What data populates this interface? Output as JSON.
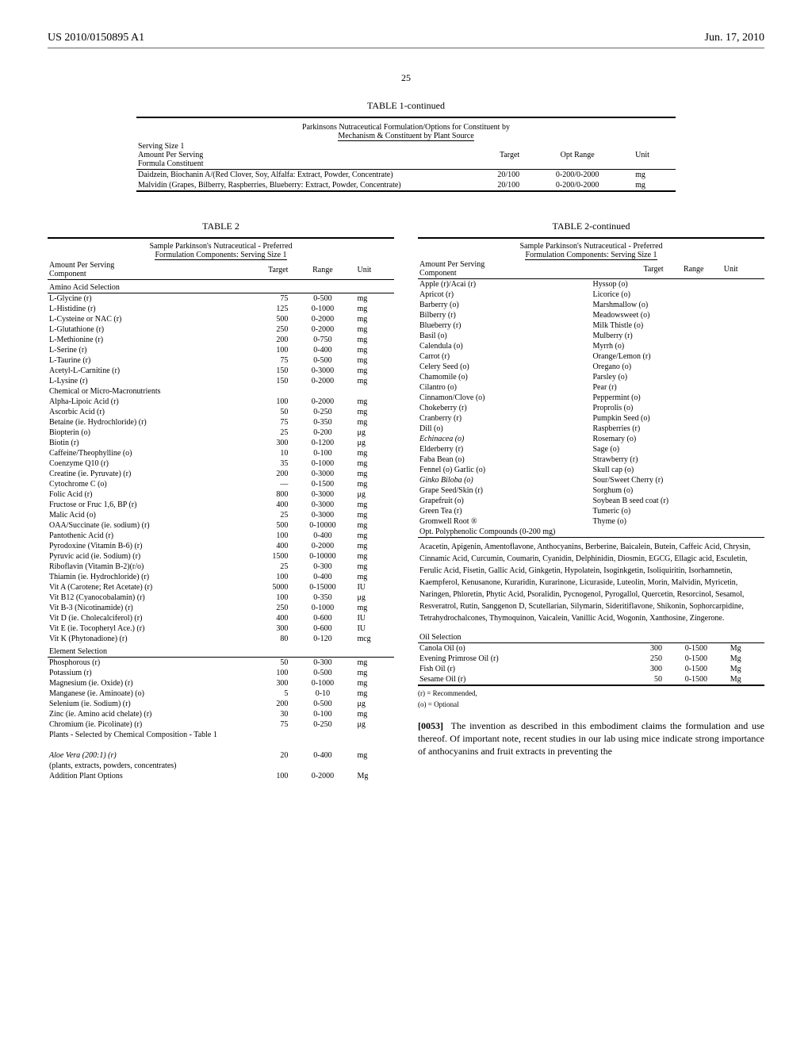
{
  "header": {
    "left": "US 2010/0150895 A1",
    "right": "Jun. 17, 2010"
  },
  "page_number": "25",
  "table1": {
    "title": "TABLE 1-continued",
    "subtitle1": "Parkinsons Nutraceutical Formulation/Options for Constituent by",
    "subtitle2": "Mechanism & Constituent by Plant Source",
    "h_serving": "Serving Size 1",
    "h_amount": "Amount Per Serving",
    "h_formula": "Formula Constituent",
    "h_target": "Target",
    "h_range": "Opt Range",
    "h_unit": "Unit",
    "r1_name": "Daidzein, Biochanin A/(Red Clover, Soy, Alfalfa: Extract, Powder, Concentrate)",
    "r1_target": "20/100",
    "r1_range": "0-200/0-2000",
    "r1_unit": "mg",
    "r2_name": "Malvidin (Grapes, Bilberry, Raspberries, Blueberry: Extract, Powder, Concentrate)",
    "r2_target": "20/100",
    "r2_range": "0-200/0-2000",
    "r2_unit": "mg"
  },
  "table2": {
    "title": "TABLE 2",
    "title_cont": "TABLE 2-continued",
    "subtitle1": "Sample Parkinson's Nutraceutical - Preferred",
    "subtitle2": "Formulation Components: Serving Size 1",
    "h_amount": "Amount Per Serving",
    "h_component": "Component",
    "h_target": "Target",
    "h_range": "Range",
    "h_unit": "Unit",
    "sec_amino": "Amino Acid Selection",
    "sec_chem": "Chemical or Micro-Macronutrients",
    "sec_elem": "Element Selection",
    "sec_plants": "Plants - Selected by Chemical Composition - Table 1",
    "sec_addplant": "Addition Plant Options",
    "sec_poly": "Opt. Polyphenolic Compounds (0-200 mg)",
    "sec_oil": "Oil Selection",
    "foot_r": "(r) = Recommended,",
    "foot_o": "(o) = Optional"
  },
  "amino": {
    "0": {
      "n": "L-Glycine (r)",
      "t": "75",
      "r": "0-500",
      "u": "mg"
    },
    "1": {
      "n": "L-Histidine (r)",
      "t": "125",
      "r": "0-1000",
      "u": "mg"
    },
    "2": {
      "n": "L-Cysteine or NAC (r)",
      "t": "500",
      "r": "0-2000",
      "u": "mg"
    },
    "3": {
      "n": "L-Glutathione (r)",
      "t": "250",
      "r": "0-2000",
      "u": "mg"
    },
    "4": {
      "n": "L-Methionine (r)",
      "t": "200",
      "r": "0-750",
      "u": "mg"
    },
    "5": {
      "n": "L-Serine (r)",
      "t": "100",
      "r": "0-400",
      "u": "mg"
    },
    "6": {
      "n": "L-Taurine (r)",
      "t": "75",
      "r": "0-500",
      "u": "mg"
    },
    "7": {
      "n": "Acetyl-L-Carnitine (r)",
      "t": "150",
      "r": "0-3000",
      "u": "mg"
    },
    "8": {
      "n": "L-Lysine (r)",
      "t": "150",
      "r": "0-2000",
      "u": "mg"
    }
  },
  "chem": {
    "0": {
      "n": "Alpha-Lipoic Acid (r)",
      "t": "100",
      "r": "0-2000",
      "u": "mg"
    },
    "1": {
      "n": "Ascorbic Acid (r)",
      "t": "50",
      "r": "0-250",
      "u": "mg"
    },
    "2": {
      "n": "Betaine (ie. Hydrochloride) (r)",
      "t": "75",
      "r": "0-350",
      "u": "mg"
    },
    "3": {
      "n": "Biopterin (o)",
      "t": "25",
      "r": "0-200",
      "u": "μg"
    },
    "4": {
      "n": "Biotin (r)",
      "t": "300",
      "r": "0-1200",
      "u": "μg"
    },
    "5": {
      "n": "Caffeine/Theophylline (o)",
      "t": "10",
      "r": "0-100",
      "u": "mg"
    },
    "6": {
      "n": "Coenzyme Q10 (r)",
      "t": "35",
      "r": "0-1000",
      "u": "mg"
    },
    "7": {
      "n": "Creatine (ie. Pyruvate) (r)",
      "t": "200",
      "r": "0-3000",
      "u": "mg"
    },
    "8": {
      "n": "Cytochrome C (o)",
      "t": "—",
      "r": "0-1500",
      "u": "mg"
    },
    "9": {
      "n": "Folic Acid (r)",
      "t": "800",
      "r": "0-3000",
      "u": "μg"
    },
    "10": {
      "n": "Fructose or Fruc 1,6, BP (r)",
      "t": "400",
      "r": "0-3000",
      "u": "mg"
    },
    "11": {
      "n": "Malic Acid (o)",
      "t": "25",
      "r": "0-3000",
      "u": "mg"
    },
    "12": {
      "n": "OAA/Succinate (ie. sodium) (r)",
      "t": "500",
      "r": "0-10000",
      "u": "mg"
    },
    "13": {
      "n": "Pantothenic Acid (r)",
      "t": "100",
      "r": "0-400",
      "u": "mg"
    },
    "14": {
      "n": "Pyrodoxine (Vitamin B-6) (r)",
      "t": "400",
      "r": "0-2000",
      "u": "mg"
    },
    "15": {
      "n": "Pyruvic acid (ie. Sodium) (r)",
      "t": "1500",
      "r": "0-10000",
      "u": "mg"
    },
    "16": {
      "n": "Riboflavin (Vitamin B-2)(r/o)",
      "t": "25",
      "r": "0-300",
      "u": "mg"
    },
    "17": {
      "n": "Thiamin (ie. Hydrochloride) (r)",
      "t": "100",
      "r": "0-400",
      "u": "mg"
    },
    "18": {
      "n": "Vit A (Carotene; Ret Acetate) (r)",
      "t": "5000",
      "r": "0-15000",
      "u": "IU"
    },
    "19": {
      "n": "Vit B12 (Cyanocobalamin) (r)",
      "t": "100",
      "r": "0-350",
      "u": "μg"
    },
    "20": {
      "n": "Vit B-3 (Nicotinamide) (r)",
      "t": "250",
      "r": "0-1000",
      "u": "mg"
    },
    "21": {
      "n": "Vit D (ie. Cholecalciferol) (r)",
      "t": "400",
      "r": "0-600",
      "u": "IU"
    },
    "22": {
      "n": "Vit E (ie. Tocopheryl Ace.) (r)",
      "t": "300",
      "r": "0-600",
      "u": "IU"
    },
    "23": {
      "n": "Vit K (Phytonadione) (r)",
      "t": "80",
      "r": "0-120",
      "u": "mcg"
    }
  },
  "elem": {
    "0": {
      "n": "Phosphorous (r)",
      "t": "50",
      "r": "0-300",
      "u": "mg"
    },
    "1": {
      "n": "Potassium (r)",
      "t": "100",
      "r": "0-500",
      "u": "mg"
    },
    "2": {
      "n": "Magnesium (ie. Oxide) (r)",
      "t": "300",
      "r": "0-1000",
      "u": "mg"
    },
    "3": {
      "n": "Manganese (ie. Aminoate) (o)",
      "t": "5",
      "r": "0-10",
      "u": "mg"
    },
    "4": {
      "n": "Selenium (ie. Sodium) (r)",
      "t": "200",
      "r": "0-500",
      "u": "μg"
    },
    "5": {
      "n": "Zinc (ie. Amino acid chelate) (r)",
      "t": "30",
      "r": "0-100",
      "u": "mg"
    },
    "6": {
      "n": "Chromium (ie. Picolinate) (r)",
      "t": "75",
      "r": "0-250",
      "u": "μg"
    }
  },
  "pl": {
    "aloe_n": "Aloe Vera (200:1) (r)",
    "aloe_t": "20",
    "aloe_r": "0-400",
    "aloe_u": "mg",
    "aloe_note": "(plants, extracts, powders, concentrates)",
    "add_t": "100",
    "add_r": "0-2000",
    "add_u": "Mg"
  },
  "pp": {
    "0": {
      "l": "Apple (r)/Acai (r)",
      "r": "Hyssop (o)"
    },
    "1": {
      "l": "Apricot (r)",
      "r": "Licorice (o)"
    },
    "2": {
      "l": "Barberry (o)",
      "r": "Marshmallow (o)"
    },
    "3": {
      "l": "Bilberry (r)",
      "r": "Meadowsweet (o)"
    },
    "4": {
      "l": "Blueberry (r)",
      "r": "Milk Thistle (o)"
    },
    "5": {
      "l": "Basil (o)",
      "r": "Mulberry (r)"
    },
    "6": {
      "l": "Calendula (o)",
      "r": "Myrrh (o)"
    },
    "7": {
      "l": "Carrot (r)",
      "r": "Orange/Lemon (r)"
    },
    "8": {
      "l": "Celery Seed (o)",
      "r": "Oregano (o)"
    },
    "9": {
      "l": "Chamomile (o)",
      "r": "Parsley (o)"
    },
    "10": {
      "l": "Cilantro (o)",
      "r": "Pear (r)"
    },
    "11": {
      "l": "Cinnamon/Clove (o)",
      "r": "Peppermint (o)"
    },
    "12": {
      "l": "Chokeberry (r)",
      "r": "Proprolis (o)"
    },
    "13": {
      "l": "Cranberry (r)",
      "r": "Pumpkin Seed (o)"
    },
    "14": {
      "l": "Dill (o)",
      "r": "Raspberries (r)"
    },
    "15": {
      "l": "Echinacea (o)",
      "r": "Rosemary (o)"
    },
    "16": {
      "l": "Elderberry (r)",
      "r": "Sage (o)"
    },
    "17": {
      "l": "Faba Bean (o)",
      "r": "Strawberry (r)"
    },
    "18": {
      "l": "Fennel (o) Garlic (o)",
      "r": "Skull cap (o)"
    },
    "19": {
      "l": "Ginko Biloba (o)",
      "r": "Sour/Sweet Cherry (r)"
    },
    "20": {
      "l": "Grape Seed/Skin (r)",
      "r": "Sorghum (o)"
    },
    "21": {
      "l": "Grapefruit (o)",
      "r": "Soybean B seed coat (r)"
    },
    "22": {
      "l": "Green Tea (r)",
      "r": "Tumeric (o)"
    },
    "23": {
      "l": "Gromwell Root ®",
      "r": "Thyme (o)"
    }
  },
  "compounds": "Acacetin, Apigenin, Amentoflavone, Anthocyanins, Berberine, Baicalein, Butein, Caffeic Acid, Chrysin, Cinnamic Acid, Curcumin, Coumarin, Cyanidin, Delphinidin, Diosmin, EGCG, Ellagic acid, Esculetin, Ferulic Acid, Fisetin, Gallic Acid, Ginkgetin, Hypolatein, Isoginkgetin, Isoliquiritin, Isorhamnetin, Kaempferol, Kenusanone, Kuraridin, Kurarinone, Licuraside, Luteolin, Morin, Malvidin, Myricetin, Naringen, Phloretin, Phytic Acid, Psoralidin, Pycnogenol, Pyrogallol, Quercetin, Resorcinol, Sesamol, Resveratrol, Rutin, Sanggenon D, Scutellarian, Silymarin, Sideritiflavone, Shikonin, Sophorcarpidine, Tetrahydrochalcones, Thymoquinon, Vaicalein, Vanillic Acid, Wogonin, Xanthosine, Zingerone.",
  "oil": {
    "0": {
      "n": "Canola Oil (o)",
      "t": "300",
      "r": "0-1500",
      "u": "Mg"
    },
    "1": {
      "n": "Evening Primrose Oil (r)",
      "t": "250",
      "r": "0-1500",
      "u": "Mg"
    },
    "2": {
      "n": "Fish Oil (r)",
      "t": "300",
      "r": "0-1500",
      "u": "Mg"
    },
    "3": {
      "n": "Sesame Oil (r)",
      "t": "50",
      "r": "0-1500",
      "u": "Mg"
    }
  },
  "para": {
    "num": "[0053]",
    "text": "The invention as described in this embodiment claims the formulation and use thereof. Of important note, recent studies in our lab using mice indicate strong importance of anthocyanins and fruit extracts in preventing the"
  }
}
